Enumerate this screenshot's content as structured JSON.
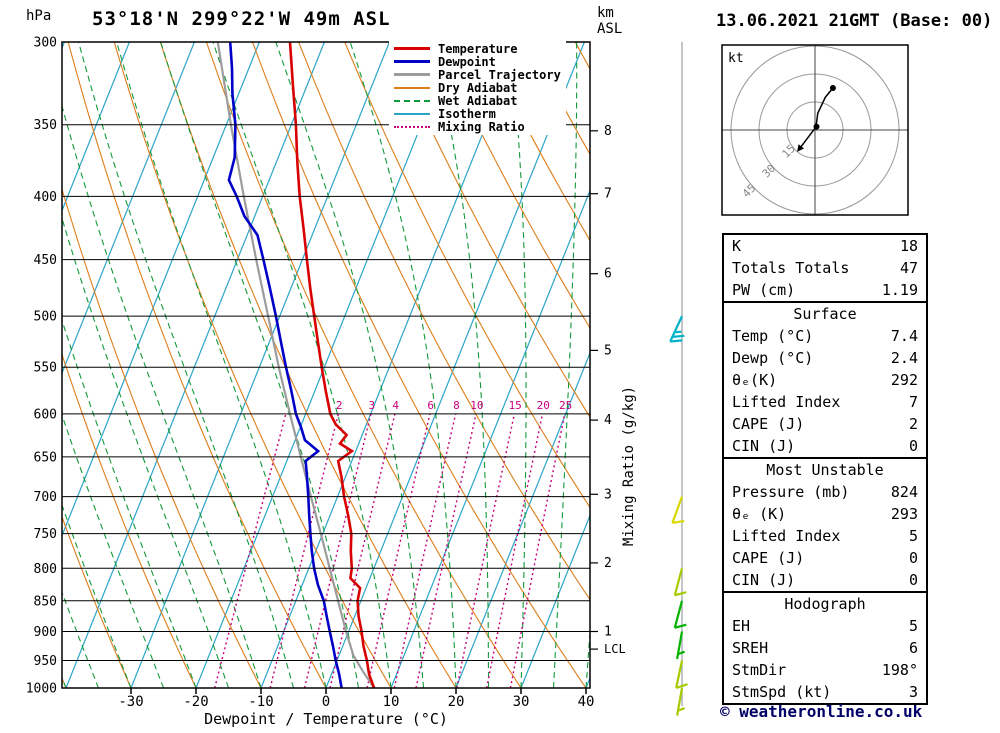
{
  "header": {
    "station_title": "53°18'N 299°22'W 49m ASL",
    "date_title": "13.06.2021 21GMT (Base: 00)",
    "pressure_unit": "hPa",
    "height_unit_line1": "km",
    "height_unit_line2": "ASL"
  },
  "legend": {
    "entries": [
      {
        "label": "Temperature",
        "color": "#d80000",
        "style": "solid",
        "width": 3
      },
      {
        "label": "Dewpoint",
        "color": "#0000c8",
        "style": "solid",
        "width": 3
      },
      {
        "label": "Parcel Trajectory",
        "color": "#9c9c9c",
        "style": "solid",
        "width": 3
      },
      {
        "label": "Dry Adiabat",
        "color": "#de7d1a",
        "style": "solid",
        "width": 2
      },
      {
        "label": "Wet Adiabat",
        "color": "#13993b",
        "style": "dashed",
        "width": 2
      },
      {
        "label": "Isotherm",
        "color": "#2aa5c8",
        "style": "solid",
        "width": 2
      },
      {
        "label": "Mixing Ratio",
        "color": "#c8007d",
        "style": "dotted",
        "width": 2
      }
    ]
  },
  "axes": {
    "temp_axis_label": "Dewpoint / Temperature (°C)",
    "mixing_ratio_axis_label": "Mixing Ratio (g/kg)"
  },
  "chart_data": {
    "type": "skewt_log_p_sounding",
    "title": "53°18'N 299°22'W 49m ASL",
    "valid_time": "13.06.2021 21GMT (Base: 00)",
    "pressure_axis": {
      "unit": "hPa",
      "scale": "log",
      "ticks": [
        300,
        350,
        400,
        450,
        500,
        550,
        600,
        650,
        700,
        750,
        800,
        850,
        900,
        950,
        1000
      ]
    },
    "temp_axis": {
      "unit": "°C",
      "label": "Dewpoint / Temperature (°C)",
      "ticks": [
        -30,
        -20,
        -10,
        0,
        10,
        20,
        30,
        40
      ],
      "range_at_surface": [
        -40,
        40
      ]
    },
    "height_axis": {
      "unit": "km ASL",
      "ticks": [
        {
          "km": 8,
          "p": 354
        },
        {
          "km": 7,
          "p": 398
        },
        {
          "km": 6,
          "p": 462
        },
        {
          "km": 5,
          "p": 533
        },
        {
          "km": 4,
          "p": 607
        },
        {
          "km": 3,
          "p": 697
        },
        {
          "km": 2,
          "p": 792
        },
        {
          "km": 1,
          "p": 900
        }
      ],
      "lcl_label": "LCL",
      "lcl_pressure": 930
    },
    "grid": {
      "isotherm_color": "#2aa5c8",
      "isotherm_step": 10,
      "isotherm_range": [
        -130,
        40
      ],
      "dry_adiabat_color": "#de7d1a",
      "dry_adiabat_step": 10,
      "dry_adiabat_range": [
        -60,
        170
      ],
      "wet_adiabat_color": "#13993b",
      "wet_adiabat_step": 5,
      "wet_adiabat_range": [
        -65,
        40
      ],
      "mixing_ratio_color": "#c8007d",
      "mixing_ratio_lines": [
        1,
        2,
        3,
        4,
        6,
        8,
        10,
        15,
        20,
        25
      ],
      "mixing_ratio_labels": [
        2,
        3,
        4,
        6,
        8,
        10,
        15,
        20,
        25
      ]
    },
    "series": {
      "temperature": {
        "name": "Temperature",
        "color": "#d80000",
        "points": [
          [
            1000,
            7.4
          ],
          [
            975,
            5.8
          ],
          [
            950,
            4.6
          ],
          [
            925,
            3.2
          ],
          [
            900,
            2.0
          ],
          [
            875,
            0.6
          ],
          [
            850,
            -0.5
          ],
          [
            830,
            -0.9
          ],
          [
            815,
            -3.0
          ],
          [
            800,
            -3.4
          ],
          [
            775,
            -4.6
          ],
          [
            750,
            -5.6
          ],
          [
            725,
            -7.2
          ],
          [
            700,
            -9.0
          ],
          [
            675,
            -10.6
          ],
          [
            655,
            -12.1
          ],
          [
            643,
            -10.6
          ],
          [
            634,
            -12.9
          ],
          [
            624,
            -12.4
          ],
          [
            612,
            -14.7
          ],
          [
            600,
            -16.2
          ],
          [
            575,
            -18.3
          ],
          [
            550,
            -20.4
          ],
          [
            525,
            -22.5
          ],
          [
            500,
            -24.7
          ],
          [
            475,
            -27.0
          ],
          [
            450,
            -29.3
          ],
          [
            425,
            -31.7
          ],
          [
            400,
            -34.3
          ],
          [
            375,
            -36.8
          ],
          [
            350,
            -39.3
          ],
          [
            325,
            -42.2
          ],
          [
            300,
            -45.3
          ]
        ]
      },
      "dewpoint": {
        "name": "Dewpoint",
        "color": "#0000c8",
        "points": [
          [
            1000,
            2.4
          ],
          [
            975,
            1.2
          ],
          [
            950,
            -0.2
          ],
          [
            925,
            -1.5
          ],
          [
            900,
            -2.9
          ],
          [
            875,
            -4.3
          ],
          [
            850,
            -5.7
          ],
          [
            825,
            -7.6
          ],
          [
            800,
            -9.2
          ],
          [
            775,
            -10.6
          ],
          [
            750,
            -11.9
          ],
          [
            725,
            -13.2
          ],
          [
            700,
            -14.5
          ],
          [
            675,
            -15.9
          ],
          [
            655,
            -17.1
          ],
          [
            643,
            -15.8
          ],
          [
            630,
            -18.5
          ],
          [
            615,
            -19.9
          ],
          [
            600,
            -21.5
          ],
          [
            575,
            -23.6
          ],
          [
            550,
            -25.9
          ],
          [
            525,
            -28.2
          ],
          [
            500,
            -30.6
          ],
          [
            475,
            -33.2
          ],
          [
            450,
            -36.0
          ],
          [
            430,
            -38.4
          ],
          [
            415,
            -41.6
          ],
          [
            400,
            -44.0
          ],
          [
            388,
            -46.2
          ],
          [
            372,
            -46.7
          ],
          [
            350,
            -48.6
          ],
          [
            330,
            -51.0
          ],
          [
            315,
            -52.6
          ],
          [
            300,
            -54.5
          ]
        ]
      },
      "parcel": {
        "name": "Parcel Trajectory",
        "color": "#9c9c9c",
        "points": [
          [
            1000,
            7.4
          ],
          [
            970,
            4.7
          ],
          [
            941,
            2.2
          ],
          [
            900,
            -0.4
          ],
          [
            850,
            -3.5
          ],
          [
            800,
            -6.8
          ],
          [
            750,
            -10.3
          ],
          [
            700,
            -14.1
          ],
          [
            650,
            -18.1
          ],
          [
            600,
            -22.4
          ],
          [
            550,
            -27.0
          ],
          [
            500,
            -31.8
          ],
          [
            450,
            -37.1
          ],
          [
            400,
            -42.9
          ],
          [
            350,
            -49.3
          ],
          [
            300,
            -56.4
          ]
        ]
      }
    },
    "wind_barbs": [
      {
        "p": 500,
        "color": "#00b4c8",
        "speed_kt": 25,
        "dir_deg": 205
      },
      {
        "p": 700,
        "color": "#d8d800",
        "speed_kt": 10,
        "dir_deg": 200
      },
      {
        "p": 800,
        "color": "#a6cc00",
        "speed_kt": 10,
        "dir_deg": 195
      },
      {
        "p": 850,
        "color": "#00b400",
        "speed_kt": 10,
        "dir_deg": 195
      },
      {
        "p": 900,
        "color": "#00b400",
        "speed_kt": 5,
        "dir_deg": 190
      },
      {
        "p": 950,
        "color": "#a6cc00",
        "speed_kt": 10,
        "dir_deg": 192
      },
      {
        "p": 1000,
        "color": "#a6cc00",
        "speed_kt": 5,
        "dir_deg": 190
      }
    ],
    "hodograph": {
      "unit_label": "kt",
      "rings_kt": [
        15,
        30,
        45
      ],
      "trace_kt": [
        [
          -8,
          -9.6
        ],
        [
          -1.5,
          -1
        ],
        [
          0.5,
          1.6
        ],
        [
          1.5,
          9
        ],
        [
          5.5,
          17.5
        ],
        [
          9.6,
          22.5
        ]
      ],
      "dots_kt": [
        [
          0.8,
          1.8
        ],
        [
          9.6,
          22.5
        ]
      ]
    }
  },
  "tables": {
    "indices": {
      "rows": [
        {
          "label": "K",
          "value": "18"
        },
        {
          "label": "Totals Totals",
          "value": "47"
        },
        {
          "label": "PW (cm)",
          "value": "1.19"
        }
      ]
    },
    "surface": {
      "title": "Surface",
      "rows": [
        {
          "label": "Temp (°C)",
          "value": "7.4"
        },
        {
          "label": "Dewp (°C)",
          "value": "2.4"
        },
        {
          "label": "θₑ(K)",
          "value": "292"
        },
        {
          "label": "Lifted Index",
          "value": "7"
        },
        {
          "label": "CAPE (J)",
          "value": "2"
        },
        {
          "label": "CIN (J)",
          "value": "0"
        }
      ]
    },
    "most_unstable": {
      "title": "Most Unstable",
      "rows": [
        {
          "label": "Pressure (mb)",
          "value": "824"
        },
        {
          "label": "θₑ (K)",
          "value": "293"
        },
        {
          "label": "Lifted Index",
          "value": "5"
        },
        {
          "label": "CAPE (J)",
          "value": "0"
        },
        {
          "label": "CIN (J)",
          "value": "0"
        }
      ]
    },
    "hodograph_table": {
      "title": "Hodograph",
      "rows": [
        {
          "label": "EH",
          "value": "5"
        },
        {
          "label": "SREH",
          "value": "6"
        },
        {
          "label": "StmDir",
          "value": "198°"
        },
        {
          "label": "StmSpd (kt)",
          "value": "3"
        }
      ]
    }
  },
  "footer": {
    "copyright": "© weatheronline.co.uk"
  }
}
